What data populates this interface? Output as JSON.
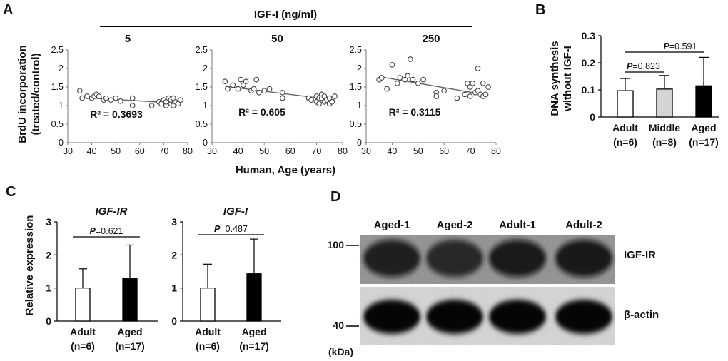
{
  "panel_labels": {
    "A": "A",
    "B": "B",
    "C": "C",
    "D": "D"
  },
  "panel_A": {
    "header": "IGF-I (ng/ml)",
    "ylabel_line1": "BrdU incorporation",
    "ylabel_line2": "(treated/control)",
    "xlabel": "Human, Age (years)",
    "x_ticks": [
      "30",
      "40",
      "50",
      "60",
      "70",
      "80"
    ],
    "y_ticks": [
      "0",
      "0.5",
      "1",
      "1.5",
      "2",
      "2.5"
    ]
  },
  "panel_B": {
    "ylabel_line1": "DNA synthesis",
    "ylabel_line2": "without IGF-I",
    "y_ticks": [
      "0",
      "0.1",
      "0.2",
      "0.3"
    ]
  },
  "panel_C": {
    "ylabel": "Relative expression",
    "y_ticks": [
      "0",
      "1",
      "2",
      "3"
    ]
  },
  "panel_D": {
    "lanes": [
      "Aged-1",
      "Aged-2",
      "Adult-1",
      "Adult-2"
    ],
    "mw_markers": [
      "100",
      "40"
    ],
    "mw_unit": "(kDa)",
    "bands": [
      {
        "label": "IGF-IR",
        "intensities": [
          0.72,
          0.7,
          0.8,
          0.82
        ]
      },
      {
        "label": "β-actin",
        "intensities": [
          0.95,
          0.95,
          0.95,
          0.95
        ]
      }
    ]
  },
  "chart_data": [
    {
      "type": "scatter",
      "panel": "A",
      "title": "5",
      "xlabel": "Human, Age (years)",
      "ylabel": "BrdU incorporation (treated/control)",
      "xlim": [
        30,
        80
      ],
      "ylim": [
        0,
        2.5
      ],
      "r2": "R² = 0.3693",
      "trendline": [
        [
          35,
          1.22
        ],
        [
          77,
          1.06
        ]
      ],
      "points": [
        [
          35,
          1.4
        ],
        [
          36,
          1.2
        ],
        [
          38,
          1.25
        ],
        [
          40,
          1.2
        ],
        [
          41,
          1.25
        ],
        [
          42,
          1.3
        ],
        [
          43,
          1.25
        ],
        [
          45,
          1.15
        ],
        [
          46,
          1.2
        ],
        [
          48,
          1.15
        ],
        [
          50,
          1.2
        ],
        [
          52,
          1.12
        ],
        [
          57,
          1.0
        ],
        [
          57,
          1.2
        ],
        [
          65,
          1.0
        ],
        [
          68,
          1.1
        ],
        [
          69,
          1.05
        ],
        [
          70,
          1.15
        ],
        [
          71,
          1.0
        ],
        [
          71,
          1.1
        ],
        [
          72,
          1.2
        ],
        [
          73,
          1.05
        ],
        [
          73,
          1.15
        ],
        [
          74,
          1.0
        ],
        [
          74,
          1.2
        ],
        [
          75,
          1.1
        ],
        [
          76,
          1.05
        ],
        [
          77,
          1.15
        ]
      ]
    },
    {
      "type": "scatter",
      "panel": "A",
      "title": "50",
      "xlabel": "Human, Age (years)",
      "ylabel": "BrdU incorporation (treated/control)",
      "xlim": [
        30,
        80
      ],
      "ylim": [
        0,
        2.5
      ],
      "r2": "R² = 0.605",
      "trendline": [
        [
          35,
          1.52
        ],
        [
          77,
          1.15
        ]
      ],
      "points": [
        [
          35,
          1.65
        ],
        [
          36,
          1.45
        ],
        [
          38,
          1.55
        ],
        [
          40,
          1.45
        ],
        [
          41,
          1.7
        ],
        [
          42,
          1.55
        ],
        [
          43,
          1.65
        ],
        [
          45,
          1.4
        ],
        [
          46,
          1.45
        ],
        [
          47,
          1.7
        ],
        [
          48,
          1.35
        ],
        [
          50,
          1.4
        ],
        [
          52,
          1.45
        ],
        [
          57,
          1.35
        ],
        [
          57,
          1.2
        ],
        [
          67,
          1.2
        ],
        [
          68,
          1.15
        ],
        [
          70,
          1.25
        ],
        [
          70,
          1.1
        ],
        [
          71,
          1.2
        ],
        [
          71,
          1.05
        ],
        [
          72,
          1.3
        ],
        [
          72,
          1.2
        ],
        [
          73,
          1.1
        ],
        [
          73,
          1.25
        ],
        [
          74,
          1.15
        ],
        [
          75,
          1.05
        ],
        [
          75,
          1.2
        ],
        [
          76,
          1.1
        ],
        [
          77,
          1.25
        ]
      ]
    },
    {
      "type": "scatter",
      "panel": "A",
      "title": "250",
      "xlabel": "Human, Age (years)",
      "ylabel": "BrdU incorporation (treated/control)",
      "xlim": [
        30,
        80
      ],
      "ylim": [
        0,
        2.5
      ],
      "r2": "R² = 0.3115",
      "trendline": [
        [
          35,
          1.78
        ],
        [
          77,
          1.28
        ]
      ],
      "points": [
        [
          35,
          1.7
        ],
        [
          36,
          1.75
        ],
        [
          38,
          1.45
        ],
        [
          40,
          2.1
        ],
        [
          42,
          1.6
        ],
        [
          43,
          1.75
        ],
        [
          45,
          1.7
        ],
        [
          46,
          1.8
        ],
        [
          47,
          2.25
        ],
        [
          48,
          1.7
        ],
        [
          50,
          1.6
        ],
        [
          52,
          1.7
        ],
        [
          57,
          1.35
        ],
        [
          57,
          1.25
        ],
        [
          60,
          1.4
        ],
        [
          65,
          1.2
        ],
        [
          68,
          1.3
        ],
        [
          69,
          1.6
        ],
        [
          70,
          1.5
        ],
        [
          70,
          1.25
        ],
        [
          71,
          1.6
        ],
        [
          72,
          1.35
        ],
        [
          73,
          2.0
        ],
        [
          73,
          1.4
        ],
        [
          74,
          1.3
        ],
        [
          75,
          1.6
        ],
        [
          75,
          1.25
        ],
        [
          76,
          1.3
        ],
        [
          77,
          1.5
        ]
      ]
    },
    {
      "type": "bar",
      "panel": "B",
      "title": "",
      "xlabel": "",
      "ylabel": "DNA synthesis without IGF-I",
      "ylim": [
        0,
        0.3
      ],
      "categories": [
        "Adult",
        "Middle",
        "Aged"
      ],
      "n_labels": [
        "(n=6)",
        "(n=8)",
        "(n=17)"
      ],
      "values": [
        0.097,
        0.103,
        0.115
      ],
      "errors": [
        0.045,
        0.05,
        0.105
      ],
      "colors": [
        "#ffffff",
        "#d4d4d4",
        "#000000"
      ],
      "comparisons": [
        {
          "p_label": "P",
          "p_value": "=0.823",
          "groups": [
            0,
            1
          ]
        },
        {
          "p_label": "P",
          "p_value": "=0.591",
          "groups": [
            0,
            2
          ]
        }
      ]
    },
    {
      "type": "bar",
      "panel": "C",
      "title": "IGF-IR",
      "xlabel": "",
      "ylabel": "Relative expression",
      "ylim": [
        0,
        3
      ],
      "categories": [
        "Adult",
        "Aged"
      ],
      "n_labels": [
        "(n=6)",
        "(n=17)"
      ],
      "values": [
        1.0,
        1.3
      ],
      "errors": [
        0.58,
        1.0
      ],
      "colors": [
        "#ffffff",
        "#000000"
      ],
      "comparisons": [
        {
          "p_label": "P",
          "p_value": "=0.621",
          "groups": [
            0,
            1
          ]
        }
      ]
    },
    {
      "type": "bar",
      "panel": "C",
      "title": "IGF-I",
      "xlabel": "",
      "ylabel": "Relative expression",
      "ylim": [
        0,
        3
      ],
      "categories": [
        "Adult",
        "Aged"
      ],
      "n_labels": [
        "(n=6)",
        "(n=17)"
      ],
      "values": [
        1.0,
        1.43
      ],
      "errors": [
        0.72,
        1.05
      ],
      "colors": [
        "#ffffff",
        "#000000"
      ],
      "comparisons": [
        {
          "p_label": "P",
          "p_value": "=0.487",
          "groups": [
            0,
            1
          ]
        }
      ]
    }
  ]
}
